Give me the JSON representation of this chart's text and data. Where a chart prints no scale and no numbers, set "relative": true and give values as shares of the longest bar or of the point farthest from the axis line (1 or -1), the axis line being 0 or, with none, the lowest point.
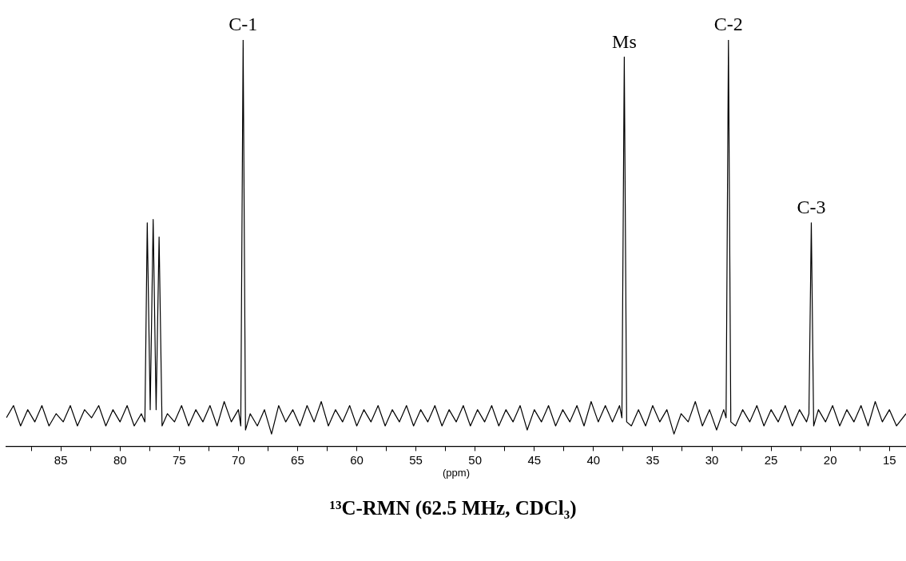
{
  "chart_data": {
    "type": "line",
    "title": "¹³C-RMN (62.5 MHz, CDCl₃)",
    "xlabel": "(ppm)",
    "relative": true,
    "xlim": [
      89.6,
      13.6
    ],
    "xticks": [
      {
        "value": 87.5,
        "label": null
      },
      85,
      {
        "value": 82.5,
        "label": null
      },
      80,
      {
        "value": 77.5,
        "label": null
      },
      75,
      {
        "value": 72.5,
        "label": null
      },
      70,
      {
        "value": 67.5,
        "label": null
      },
      65,
      {
        "value": 62.5,
        "label": null
      },
      60,
      {
        "value": 57.5,
        "label": null
      },
      55,
      {
        "value": 52.5,
        "label": null
      },
      50,
      {
        "value": 47.5,
        "label": null
      },
      45,
      {
        "value": 42.5,
        "label": null
      },
      40,
      {
        "value": 37.5,
        "label": null
      },
      35,
      {
        "value": 32.5,
        "label": null
      },
      30,
      {
        "value": 27.5,
        "label": null
      },
      25,
      {
        "value": 22.5,
        "label": null
      },
      20,
      {
        "value": 17.5,
        "label": null
      },
      15
    ],
    "x": [
      89.6,
      89.0,
      88.4,
      87.8,
      87.2,
      86.6,
      86.0,
      85.4,
      84.8,
      84.2,
      83.6,
      83.0,
      82.4,
      81.8,
      81.2,
      80.6,
      80.0,
      79.4,
      78.8,
      78.2,
      77.9,
      77.7,
      77.45,
      77.2,
      76.95,
      76.7,
      76.45,
      76.0,
      75.4,
      74.8,
      74.2,
      73.6,
      73.0,
      72.4,
      71.8,
      71.2,
      70.6,
      70.0,
      69.8,
      69.6,
      69.4,
      69.0,
      68.4,
      67.8,
      67.2,
      66.6,
      66.0,
      65.4,
      64.8,
      64.2,
      63.6,
      63.0,
      62.4,
      61.8,
      61.2,
      60.6,
      60.0,
      59.4,
      58.8,
      58.2,
      57.6,
      57.0,
      56.4,
      55.8,
      55.2,
      54.6,
      54.0,
      53.4,
      52.8,
      52.2,
      51.6,
      51.0,
      50.4,
      49.8,
      49.2,
      48.6,
      48.0,
      47.4,
      46.8,
      46.2,
      45.6,
      45.0,
      44.4,
      43.8,
      43.2,
      42.6,
      42.0,
      41.4,
      40.8,
      40.2,
      39.6,
      39.0,
      38.4,
      37.8,
      37.6,
      37.4,
      37.2,
      36.8,
      36.2,
      35.6,
      35.0,
      34.4,
      33.8,
      33.2,
      32.6,
      32.0,
      31.4,
      30.8,
      30.2,
      29.6,
      29.0,
      28.8,
      28.6,
      28.4,
      28.0,
      27.4,
      26.8,
      26.2,
      25.6,
      25.0,
      24.4,
      23.8,
      23.2,
      22.6,
      22.0,
      21.8,
      21.6,
      21.4,
      21.0,
      20.4,
      19.8,
      19.2,
      18.6,
      18.0,
      17.4,
      16.8,
      16.2,
      15.6,
      15.0,
      14.4,
      13.6
    ],
    "series": [
      {
        "color": "#000000",
        "values": [
          0.07,
          0.1,
          0.05,
          0.09,
          0.06,
          0.1,
          0.05,
          0.08,
          0.06,
          0.1,
          0.05,
          0.09,
          0.07,
          0.1,
          0.05,
          0.09,
          0.06,
          0.1,
          0.05,
          0.08,
          0.06,
          0.55,
          0.09,
          0.558,
          0.09,
          0.515,
          0.05,
          0.08,
          0.06,
          0.1,
          0.05,
          0.09,
          0.06,
          0.1,
          0.05,
          0.11,
          0.06,
          0.09,
          0.05,
          1.0,
          0.04,
          0.08,
          0.05,
          0.09,
          0.03,
          0.1,
          0.06,
          0.09,
          0.05,
          0.1,
          0.06,
          0.11,
          0.05,
          0.09,
          0.06,
          0.1,
          0.05,
          0.09,
          0.06,
          0.1,
          0.05,
          0.09,
          0.06,
          0.1,
          0.05,
          0.09,
          0.06,
          0.1,
          0.05,
          0.09,
          0.06,
          0.1,
          0.05,
          0.09,
          0.06,
          0.1,
          0.05,
          0.09,
          0.06,
          0.1,
          0.04,
          0.09,
          0.06,
          0.1,
          0.05,
          0.09,
          0.06,
          0.1,
          0.05,
          0.11,
          0.06,
          0.1,
          0.06,
          0.1,
          0.07,
          0.958,
          0.06,
          0.05,
          0.09,
          0.05,
          0.1,
          0.06,
          0.09,
          0.03,
          0.08,
          0.06,
          0.11,
          0.05,
          0.09,
          0.04,
          0.09,
          0.07,
          1.0,
          0.06,
          0.05,
          0.09,
          0.06,
          0.1,
          0.05,
          0.09,
          0.06,
          0.1,
          0.05,
          0.09,
          0.06,
          0.08,
          0.55,
          0.05,
          0.09,
          0.06,
          0.1,
          0.05,
          0.09,
          0.06,
          0.1,
          0.05,
          0.11,
          0.06,
          0.09,
          0.05,
          0.08
        ]
      }
    ],
    "annotations": [
      {
        "text": "C-1",
        "x": 69.6,
        "y": 1.0
      },
      {
        "text": "Ms",
        "x": 37.4,
        "y": 0.958
      },
      {
        "text": "C-2",
        "x": 28.6,
        "y": 1.0
      },
      {
        "text": "C-3",
        "x": 21.6,
        "y": 0.55
      }
    ]
  }
}
